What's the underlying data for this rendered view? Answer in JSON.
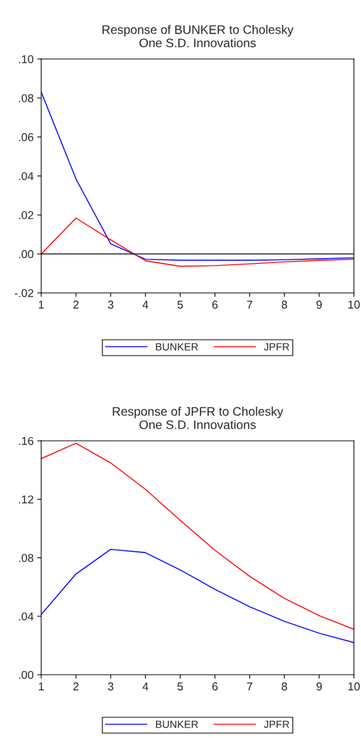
{
  "chart_data": [
    {
      "type": "line",
      "title": "Response of BUNKER to Cholesky\nOne S.D. Innovations",
      "x": [
        1,
        2,
        3,
        4,
        5,
        6,
        7,
        8,
        9,
        10
      ],
      "series": [
        {
          "name": "BUNKER",
          "color": "#0000ff",
          "values": [
            0.083,
            0.0385,
            0.0052,
            -0.0027,
            -0.0032,
            -0.0032,
            -0.0032,
            -0.003,
            -0.0025,
            -0.002
          ]
        },
        {
          "name": "JPFR",
          "color": "#ff0000",
          "values": [
            0.0,
            0.0184,
            0.0072,
            -0.0035,
            -0.0063,
            -0.006,
            -0.0051,
            -0.0041,
            -0.0033,
            -0.0027
          ]
        }
      ],
      "xlim": [
        1,
        10
      ],
      "xticks": [
        1,
        2,
        3,
        4,
        5,
        6,
        7,
        8,
        9,
        10
      ],
      "ylim": [
        -0.02,
        0.1
      ],
      "yticks": [
        {
          "value": -0.02,
          "label": "-.02"
        },
        {
          "value": 0.0,
          "label": ".00"
        },
        {
          "value": 0.02,
          "label": ".02"
        },
        {
          "value": 0.04,
          "label": ".04"
        },
        {
          "value": 0.06,
          "label": ".06"
        },
        {
          "value": 0.08,
          "label": ".08"
        },
        {
          "value": 0.1,
          "label": ".10"
        }
      ],
      "ref_lines": [
        {
          "axis": "y",
          "value": 0.0,
          "color": "#000000"
        }
      ],
      "grid": false,
      "legend": "bottom",
      "marker": "none",
      "line_style": "solid"
    },
    {
      "type": "line",
      "title": "Response of JPFR to Cholesky\nOne S.D. Innovations",
      "x": [
        1,
        2,
        3,
        4,
        5,
        6,
        7,
        8,
        9,
        10
      ],
      "series": [
        {
          "name": "BUNKER",
          "color": "#0000ff",
          "values": [
            0.0412,
            0.0689,
            0.0858,
            0.0835,
            0.0717,
            0.0584,
            0.0465,
            0.0365,
            0.0284,
            0.022
          ]
        },
        {
          "name": "JPFR",
          "color": "#ff0000",
          "values": [
            0.1478,
            0.1584,
            0.1449,
            0.1268,
            0.1057,
            0.0851,
            0.0673,
            0.0522,
            0.0404,
            0.0311
          ]
        }
      ],
      "xlim": [
        1,
        10
      ],
      "xticks": [
        1,
        2,
        3,
        4,
        5,
        6,
        7,
        8,
        9,
        10
      ],
      "ylim": [
        0.0,
        0.16
      ],
      "yticks": [
        {
          "value": 0.0,
          "label": ".00"
        },
        {
          "value": 0.04,
          "label": ".04"
        },
        {
          "value": 0.08,
          "label": ".08"
        },
        {
          "value": 0.12,
          "label": ".12"
        },
        {
          "value": 0.16,
          "label": ".16"
        }
      ],
      "grid": false,
      "legend": "bottom",
      "marker": "none",
      "line_style": "solid"
    }
  ]
}
